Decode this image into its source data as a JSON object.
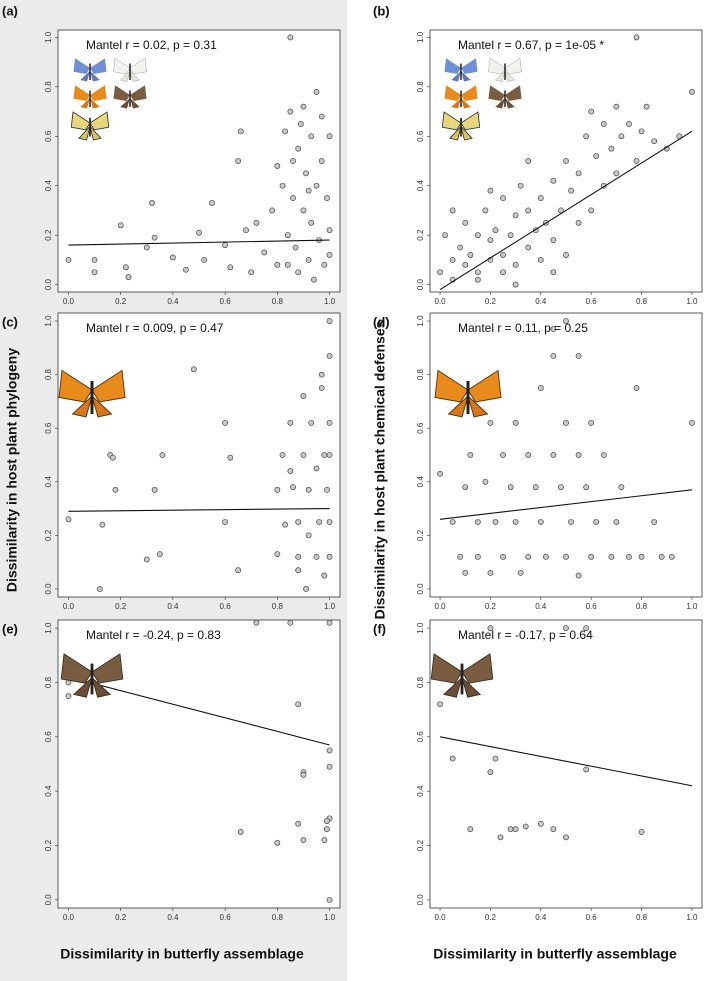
{
  "figure_labels": {
    "left_ylabel": "Dissimilarity in host plant phylogeny",
    "right_ylabel": "Dissimilarity in host plant chemical defenses",
    "left_xlabel": "Dissimilarity in butterfly assemblage",
    "right_xlabel": "Dissimilarity in butterfly assemblage"
  },
  "chart_data": [
    {
      "type": "scatter",
      "panel_label": "(a)",
      "annotation": "Mantel r = 0.02, p = 0.31",
      "xlim": [
        -0.04,
        1.04
      ],
      "ylim": [
        -0.03,
        1.03
      ],
      "xticks": [
        {
          "value": 0,
          "label": "0.0"
        },
        0.2,
        0.4,
        0.6,
        0.8,
        {
          "value": 1,
          "label": "1.0"
        }
      ],
      "yticks": [
        {
          "value": 0,
          "label": "0.0"
        },
        0.2,
        0.4,
        0.6,
        0.8,
        {
          "value": 1,
          "label": "1.0"
        }
      ],
      "x": [
        0,
        0.1,
        0.1,
        0.2,
        0.22,
        0.23,
        0.3,
        0.32,
        0.33,
        0.4,
        0.45,
        0.5,
        0.52,
        0.55,
        0.6,
        0.62,
        0.65,
        0.66,
        0.68,
        0.7,
        0.72,
        0.75,
        0.78,
        0.8,
        0.8,
        0.82,
        0.83,
        0.84,
        0.85,
        0.85,
        0.86,
        0.87,
        0.88,
        0.88,
        0.9,
        0.9,
        0.91,
        0.92,
        0.93,
        0.93,
        0.94,
        0.95,
        0.95,
        0.96,
        0.97,
        0.97,
        0.98,
        0.99,
        1.0,
        1.0,
        1.0,
        0.89,
        0.86,
        0.92,
        0.84
      ],
      "y": [
        0.1,
        0.05,
        0.1,
        0.24,
        0.07,
        0.03,
        0.15,
        0.33,
        0.19,
        0.11,
        0.06,
        0.21,
        0.1,
        0.33,
        0.16,
        0.07,
        0.5,
        0.62,
        0.22,
        0.05,
        0.25,
        0.13,
        0.3,
        0.48,
        0.08,
        0.4,
        0.62,
        0.2,
        1.0,
        0.7,
        0.35,
        0.15,
        0.55,
        0.05,
        0.72,
        0.3,
        0.45,
        0.1,
        0.6,
        0.25,
        0.02,
        0.78,
        0.4,
        0.18,
        0.68,
        0.5,
        0.08,
        0.35,
        0.6,
        0.22,
        0.12,
        0.65,
        0.5,
        0.38,
        0.08
      ],
      "fit_line": {
        "x": [
          0,
          1
        ],
        "y": [
          0.16,
          0.18
        ]
      }
    },
    {
      "type": "scatter",
      "panel_label": "(b)",
      "annotation": "Mantel r = 0.67, p = 1e-05 *",
      "xlim": [
        -0.04,
        1.04
      ],
      "ylim": [
        -0.03,
        1.03
      ],
      "xticks": [
        {
          "value": 0,
          "label": "0.0"
        },
        0.2,
        0.4,
        0.6,
        0.8,
        {
          "value": 1,
          "label": "1.0"
        }
      ],
      "yticks": [
        {
          "value": 0,
          "label": "0.0"
        },
        0.2,
        0.4,
        0.6,
        0.8,
        {
          "value": 1,
          "label": "1.0"
        }
      ],
      "x": [
        0,
        0.02,
        0.05,
        0.05,
        0.08,
        0.1,
        0.1,
        0.12,
        0.15,
        0.15,
        0.18,
        0.2,
        0.2,
        0.22,
        0.25,
        0.25,
        0.28,
        0.3,
        0.3,
        0.32,
        0.35,
        0.35,
        0.38,
        0.4,
        0.4,
        0.42,
        0.45,
        0.45,
        0.48,
        0.5,
        0.5,
        0.52,
        0.55,
        0.55,
        0.58,
        0.6,
        0.6,
        0.62,
        0.65,
        0.65,
        0.68,
        0.7,
        0.7,
        0.72,
        0.75,
        0.78,
        0.8,
        0.82,
        0.85,
        0.9,
        0.95,
        1.0,
        0.05,
        0.15,
        0.25,
        0.35,
        0.45,
        0.3,
        0.2,
        0.78
      ],
      "y": [
        0.05,
        0.2,
        0.1,
        0.02,
        0.15,
        0.08,
        0.25,
        0.12,
        0.05,
        0.2,
        0.3,
        0.1,
        0.18,
        0.22,
        0.12,
        0.35,
        0.2,
        0.08,
        0.28,
        0.4,
        0.15,
        0.3,
        0.22,
        0.1,
        0.35,
        0.25,
        0.18,
        0.42,
        0.3,
        0.12,
        0.5,
        0.38,
        0.25,
        0.45,
        0.6,
        0.3,
        0.7,
        0.52,
        0.4,
        0.65,
        0.55,
        0.72,
        0.45,
        0.6,
        0.65,
        0.5,
        0.62,
        0.72,
        0.58,
        0.55,
        0.6,
        0.78,
        0.3,
        0.02,
        0.05,
        0.5,
        0.05,
        0,
        0.38,
        1.0
      ],
      "fit_line": {
        "x": [
          0,
          1
        ],
        "y": [
          -0.02,
          0.62
        ]
      }
    },
    {
      "type": "scatter",
      "panel_label": "(c)",
      "annotation": "Mantel r = 0.009, p = 0.47",
      "xlim": [
        -0.04,
        1.04
      ],
      "ylim": [
        -0.03,
        1.03
      ],
      "xticks": [
        {
          "value": 0,
          "label": "0.0"
        },
        0.2,
        0.4,
        0.6,
        0.8,
        {
          "value": 1,
          "label": "1.0"
        }
      ],
      "yticks": [
        {
          "value": 0,
          "label": "0.0"
        },
        0.2,
        0.4,
        0.6,
        0.8,
        {
          "value": 1,
          "label": "1.0"
        }
      ],
      "x": [
        0,
        0.12,
        0.13,
        0.16,
        0.17,
        0.18,
        0.3,
        0.33,
        0.35,
        0.36,
        0.48,
        0.6,
        0.6,
        0.62,
        0.65,
        0.8,
        0.8,
        0.82,
        0.83,
        0.85,
        0.86,
        0.88,
        0.88,
        0.9,
        0.9,
        0.91,
        0.92,
        0.93,
        0.95,
        0.95,
        0.96,
        0.97,
        0.98,
        0.98,
        0.99,
        1.0,
        1.0,
        1.0,
        1.0,
        1.0,
        1.0,
        0.88,
        0.92,
        0.85,
        0.97
      ],
      "y": [
        0.26,
        0,
        0.24,
        0.5,
        0.49,
        0.37,
        0.11,
        0.37,
        0.13,
        0.5,
        0.82,
        0.62,
        0.25,
        0.49,
        0.07,
        0.37,
        0.13,
        0.5,
        0.24,
        0.62,
        0.38,
        0.25,
        0.12,
        0.72,
        0.5,
        0,
        0.37,
        0.62,
        0.12,
        0.45,
        0.25,
        0.75,
        0.05,
        0.5,
        0.37,
        1.0,
        0.87,
        0.62,
        0.12,
        0.25,
        0.5,
        0.07,
        0.2,
        0.44,
        0.8
      ],
      "fit_line": {
        "x": [
          0,
          1
        ],
        "y": [
          0.29,
          0.3
        ]
      }
    },
    {
      "type": "scatter",
      "panel_label": "(d)",
      "annotation": "Mantel r = 0.11, p = 0.25",
      "xlim": [
        -0.04,
        1.04
      ],
      "ylim": [
        -0.03,
        1.03
      ],
      "xticks": [
        {
          "value": 0,
          "label": "0.0"
        },
        0.2,
        0.4,
        0.6,
        0.8,
        {
          "value": 1,
          "label": "1.0"
        }
      ],
      "yticks": [
        {
          "value": 0,
          "label": "0.0"
        },
        0.2,
        0.4,
        0.6,
        0.8,
        {
          "value": 1,
          "label": "1.0"
        }
      ],
      "x": [
        0,
        0.05,
        0.08,
        0.1,
        0.1,
        0.12,
        0.15,
        0.15,
        0.18,
        0.2,
        0.2,
        0.22,
        0.25,
        0.25,
        0.28,
        0.3,
        0.3,
        0.32,
        0.35,
        0.35,
        0.38,
        0.4,
        0.4,
        0.42,
        0.45,
        0.45,
        0.48,
        0.5,
        0.5,
        0.52,
        0.55,
        0.55,
        0.58,
        0.6,
        0.6,
        0.62,
        0.65,
        0.68,
        0.7,
        0.72,
        0.75,
        0.78,
        0.8,
        0.85,
        0.88,
        0.92,
        1.0,
        0.45,
        0.5,
        0.55
      ],
      "y": [
        0.43,
        0.25,
        0.12,
        0.38,
        0.06,
        0.5,
        0.25,
        0.12,
        0.4,
        0.62,
        0.06,
        0.25,
        0.5,
        0.12,
        0.38,
        0.62,
        0.25,
        0.06,
        0.5,
        0.12,
        0.38,
        0.25,
        0.75,
        0.12,
        0.5,
        0.87,
        0.38,
        0.62,
        0.12,
        0.25,
        0.5,
        0.05,
        0.38,
        0.12,
        0.62,
        0.25,
        0.5,
        0.12,
        0.25,
        0.38,
        0.12,
        0.75,
        0.12,
        0.25,
        0.12,
        0.12,
        0.62,
        0.97,
        1.0,
        0.87
      ],
      "fit_line": {
        "x": [
          0,
          1
        ],
        "y": [
          0.26,
          0.37
        ]
      }
    },
    {
      "type": "scatter",
      "panel_label": "(e)",
      "annotation": "Mantel r = -0.24, p = 0.83",
      "xlim": [
        -0.04,
        1.04
      ],
      "ylim": [
        -0.03,
        1.03
      ],
      "xticks": [
        {
          "value": 0,
          "label": "0.0"
        },
        0.2,
        0.4,
        0.6,
        0.8,
        {
          "value": 1,
          "label": "1.0"
        }
      ],
      "yticks": [
        {
          "value": 0,
          "label": "0.0"
        },
        0.2,
        0.4,
        0.6,
        0.8,
        {
          "value": 1,
          "label": "1.0"
        }
      ],
      "x": [
        0,
        0,
        0.72,
        0.85,
        0.88,
        0.9,
        0.9,
        0.66,
        0.8,
        0.88,
        0.9,
        0.98,
        0.99,
        1.0,
        1.0,
        1.0,
        1.0,
        1.0,
        0.99
      ],
      "y": [
        0.75,
        0.8,
        1.02,
        1.02,
        0.72,
        0.47,
        0.46,
        0.25,
        0.21,
        0.28,
        0.22,
        0.22,
        0.26,
        0.3,
        0.49,
        0.55,
        0,
        1.02,
        0.29
      ],
      "fit_line": {
        "x": [
          0,
          1
        ],
        "y": [
          0.82,
          0.57
        ]
      }
    },
    {
      "type": "scatter",
      "panel_label": "(f)",
      "annotation": "Mantel r = -0.17, p = 0.64",
      "xlim": [
        -0.04,
        1.04
      ],
      "ylim": [
        -0.03,
        1.03
      ],
      "xticks": [
        {
          "value": 0,
          "label": "0.0"
        },
        0.2,
        0.4,
        0.6,
        0.8,
        {
          "value": 1,
          "label": "1.0"
        }
      ],
      "yticks": [
        {
          "value": 0,
          "label": "0.0"
        },
        0.2,
        0.4,
        0.6,
        0.8,
        {
          "value": 1,
          "label": "1.0"
        }
      ],
      "x": [
        0,
        0.05,
        0.12,
        0.2,
        0.22,
        0.24,
        0.28,
        0.3,
        0.34,
        0.4,
        0.45,
        0.5,
        0.58,
        0.8,
        0.2,
        0.5,
        0.58
      ],
      "y": [
        0.72,
        0.52,
        0.26,
        0.47,
        0.52,
        0.23,
        0.26,
        0.26,
        0.27,
        0.28,
        0.26,
        0.23,
        0.48,
        0.25,
        1.0,
        1.0,
        1.0
      ],
      "fit_line": {
        "x": [
          0,
          1
        ],
        "y": [
          0.6,
          0.42
        ]
      }
    }
  ]
}
